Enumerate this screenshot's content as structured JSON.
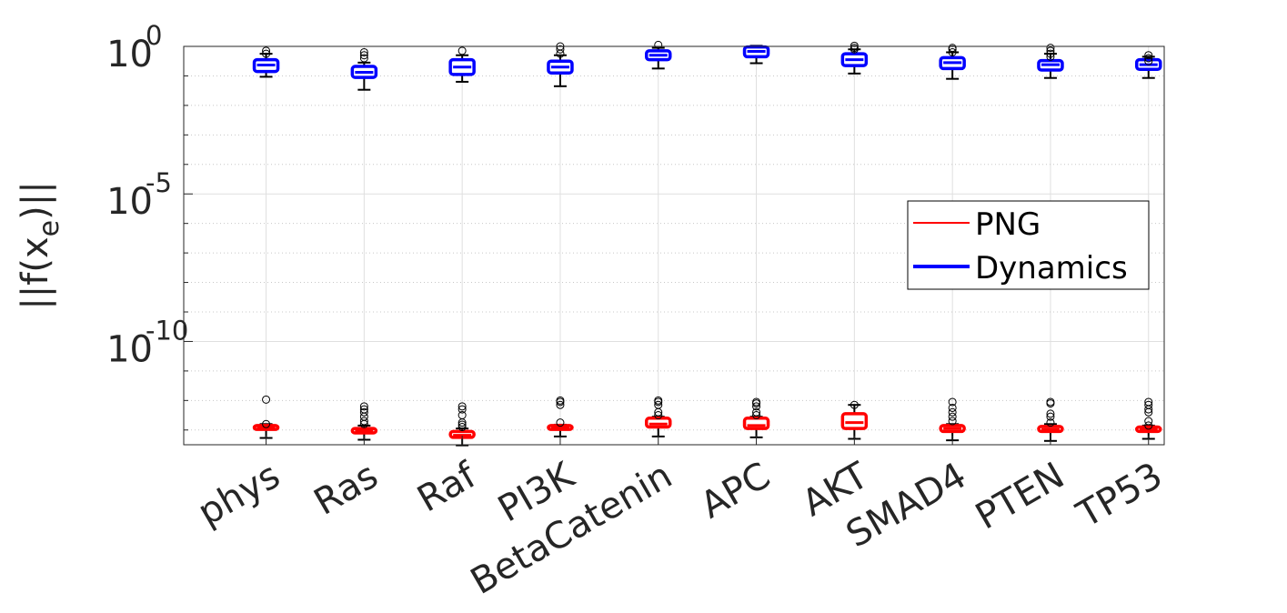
{
  "chart_data": {
    "type": "box",
    "ylabel_parts": {
      "pre": "||f(x",
      "sub": "e",
      "post": ")||"
    },
    "yscale": "log",
    "ylim_exp": [
      -13.5,
      0
    ],
    "yticks": [
      {
        "base": "10",
        "exp": "0",
        "value_exp": 0
      },
      {
        "base": "10",
        "exp": "-5",
        "value_exp": -5
      },
      {
        "base": "10",
        "exp": "-10",
        "value_exp": -10
      }
    ],
    "grid": true,
    "legend_position": "center-right",
    "colors": {
      "PNG": "#ff0000",
      "Dynamics": "#0000ff",
      "outlier": "#000000",
      "whisker": "#000000"
    },
    "categories": [
      "phys",
      "Ras",
      "Raf",
      "PI3K",
      "BetaCatenin",
      "APC",
      "AKT",
      "SMAD4",
      "PTEN",
      "TP53"
    ],
    "series": [
      {
        "name": "PNG",
        "boxes": [
          {
            "q1": -12.98,
            "median": -12.92,
            "q3": -12.85,
            "wlo": -13.27,
            "whi": -12.8,
            "outliers": [
              -11.97,
              -12.8
            ]
          },
          {
            "q1": -13.1,
            "median": -13.03,
            "q3": -12.95,
            "wlo": -13.33,
            "whi": -12.85,
            "outliers": [
              -12.2,
              -12.3,
              -12.4,
              -12.55,
              -12.7,
              -12.8
            ]
          },
          {
            "q1": -13.25,
            "median": -13.18,
            "q3": -13.05,
            "wlo": -13.52,
            "whi": -12.95,
            "outliers": [
              -12.2,
              -12.3,
              -12.5,
              -12.75,
              -12.82,
              -12.9
            ]
          },
          {
            "q1": -12.98,
            "median": -12.93,
            "q3": -12.85,
            "wlo": -13.22,
            "whi": -12.82,
            "outliers": [
              -12.0,
              -12.05,
              -12.15,
              -12.75
            ]
          },
          {
            "q1": -12.9,
            "median": -12.8,
            "q3": -12.6,
            "wlo": -13.22,
            "whi": -12.55,
            "outliers": [
              -12.0,
              -12.05,
              -12.15,
              -12.4,
              -12.5
            ]
          },
          {
            "q1": -12.95,
            "median": -12.85,
            "q3": -12.6,
            "wlo": -13.25,
            "whi": -12.55,
            "outliers": [
              -12.05,
              -12.1,
              -12.2,
              -12.4,
              -12.5
            ]
          },
          {
            "q1": -12.95,
            "median": -12.75,
            "q3": -12.45,
            "wlo": -13.3,
            "whi": -12.15,
            "outliers": [
              -12.15
            ]
          },
          {
            "q1": -13.05,
            "median": -12.95,
            "q3": -12.85,
            "wlo": -13.35,
            "whi": -12.8,
            "outliers": [
              -12.05,
              -12.25,
              -12.4,
              -12.55,
              -12.7
            ]
          },
          {
            "q1": -13.05,
            "median": -12.98,
            "q3": -12.88,
            "wlo": -13.37,
            "whi": -12.8,
            "outliers": [
              -12.05,
              -12.1,
              -12.45,
              -12.55,
              -12.75
            ]
          },
          {
            "q1": -13.05,
            "median": -12.98,
            "q3": -12.9,
            "wlo": -13.3,
            "whi": -12.85,
            "outliers": [
              -12.05,
              -12.15,
              -12.3,
              -12.4,
              -12.7,
              -12.85
            ]
          }
        ]
      },
      {
        "name": "Dynamics",
        "boxes": [
          {
            "q1": -0.85,
            "median": -0.63,
            "q3": -0.45,
            "wlo": -1.03,
            "whi": -0.25,
            "outliers": [
              -0.15,
              -0.25
            ]
          },
          {
            "q1": -1.05,
            "median": -0.88,
            "q3": -0.68,
            "wlo": -1.47,
            "whi": -0.55,
            "outliers": [
              -0.2,
              -0.3,
              -0.4
            ]
          },
          {
            "q1": -0.95,
            "median": -0.7,
            "q3": -0.45,
            "wlo": -1.2,
            "whi": -0.3,
            "outliers": [
              -0.15
            ]
          },
          {
            "q1": -0.9,
            "median": -0.7,
            "q3": -0.5,
            "wlo": -1.35,
            "whi": -0.3,
            "outliers": [
              0.0,
              -0.1,
              -0.25
            ]
          },
          {
            "q1": -0.45,
            "median": -0.3,
            "q3": -0.15,
            "wlo": -0.75,
            "whi": -0.05,
            "outliers": [
              0.05
            ]
          },
          {
            "q1": -0.35,
            "median": -0.17,
            "q3": -0.02,
            "wlo": -0.57,
            "whi": 0.02,
            "outliers": []
          },
          {
            "q1": -0.65,
            "median": -0.45,
            "q3": -0.25,
            "wlo": -0.92,
            "whi": -0.1,
            "outliers": [
              0.02,
              -0.05,
              -0.1
            ]
          },
          {
            "q1": -0.75,
            "median": -0.55,
            "q3": -0.38,
            "wlo": -1.1,
            "whi": -0.2,
            "outliers": [
              -0.05,
              -0.1,
              -0.2
            ]
          },
          {
            "q1": -0.8,
            "median": -0.62,
            "q3": -0.48,
            "wlo": -1.07,
            "whi": -0.25,
            "outliers": [
              -0.05,
              -0.15,
              -0.25,
              -0.35
            ]
          },
          {
            "q1": -0.78,
            "median": -0.62,
            "q3": -0.45,
            "wlo": -1.07,
            "whi": -0.35,
            "outliers": [
              -0.3,
              -0.4,
              -0.5
            ]
          }
        ]
      }
    ]
  }
}
